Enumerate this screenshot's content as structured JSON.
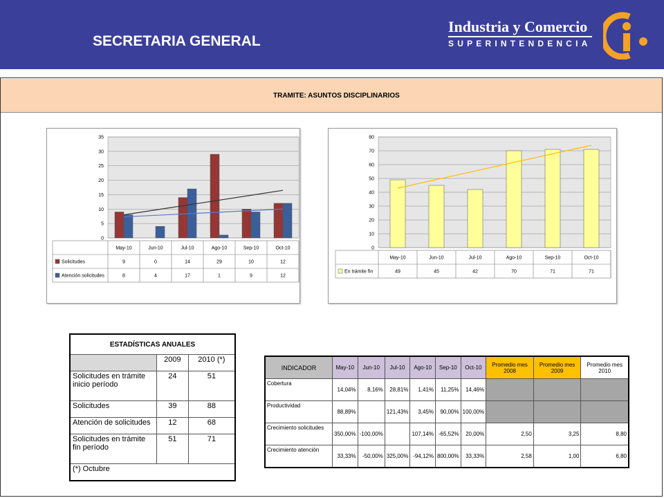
{
  "header": {
    "title": "SECRETARIA GENERAL",
    "brand_name": "Industria y Comercio",
    "brand_sub": "SUPERINTENDENCIA",
    "brand_color": "#3a3f9a",
    "logo_color": "#f4a227"
  },
  "tramite": {
    "label": "TRAMITE:  ASUNTOS DISCIPLINARIOS"
  },
  "chart_data": [
    {
      "type": "bar",
      "categories": [
        "May-10",
        "Jun-10",
        "Jul-10",
        "Ago-10",
        "Sep-10",
        "Oct-10"
      ],
      "series": [
        {
          "name": "Solicitudes",
          "values": [
            9,
            0,
            14,
            29,
            10,
            12
          ],
          "color": "#953735"
        },
        {
          "name": "Atención solicitudes",
          "values": [
            8,
            4,
            17,
            1,
            9,
            12
          ],
          "color": "#3a5f9a"
        }
      ],
      "trendlines": [
        {
          "series": "Solicitudes",
          "from": 8,
          "to": 16.5,
          "color": "#333333"
        },
        {
          "series": "Atención solicitudes",
          "from": 7.3,
          "to": 10,
          "color": "#5b78c8"
        }
      ],
      "ylim": [
        0,
        35
      ],
      "yticks": [
        0,
        5,
        10,
        15,
        20,
        25,
        30,
        35
      ],
      "legend": "data-table",
      "grid": true
    },
    {
      "type": "bar",
      "categories": [
        "May-10",
        "Jun-10",
        "Jul-10",
        "Ago-10",
        "Sep-10",
        "Oct-10"
      ],
      "series": [
        {
          "name": "En trámite fin",
          "values": [
            49,
            45,
            42,
            70,
            71,
            71
          ],
          "color": "#ffff99"
        }
      ],
      "trendlines": [
        {
          "series": "En trámite fin",
          "from": 43,
          "to": 74,
          "color": "#ffc000"
        }
      ],
      "ylim": [
        0,
        80
      ],
      "yticks": [
        0,
        10,
        20,
        30,
        40,
        50,
        60,
        70,
        80
      ],
      "legend": "data-table",
      "grid": true
    }
  ],
  "stats": {
    "title": "ESTADÍSTICAS ANUALES",
    "col1": "2009",
    "col2": "2010 (*)",
    "rows": [
      {
        "label": "Solicitudes en trámite inicio período",
        "v1": "24",
        "v2": "51"
      },
      {
        "label": "Solicitudes",
        "v1": "39",
        "v2": "88"
      },
      {
        "label": "Atención de solicitudes",
        "v1": "12",
        "v2": "68"
      },
      {
        "label": "Solicitudes en trámite fin período",
        "v1": "51",
        "v2": "71"
      }
    ],
    "footnote": "(*) Octubre"
  },
  "indicators": {
    "header": [
      "INDICADOR",
      "May-10",
      "Jun-10",
      "Jul-10",
      "Ago-10",
      "Sep-10",
      "Oct-10",
      "Promedio mes 2008",
      "Promedio mes 2009",
      "Promedio mes 2010"
    ],
    "rows": [
      {
        "label": "Cobertura",
        "vals": [
          "14,04%",
          "8,16%",
          "28,81%",
          "1,41%",
          "11,25%",
          "14,46%"
        ],
        "avg": [
          "",
          "",
          ""
        ]
      },
      {
        "label": "Productividad",
        "vals": [
          "88,89%",
          "",
          "121,43%",
          "3,45%",
          "90,00%",
          "100,00%"
        ],
        "avg": [
          "",
          "",
          ""
        ]
      },
      {
        "label": "Crecimiento solicitudes",
        "vals": [
          "350,00%",
          "-100,00%",
          "",
          "107,14%",
          "-65,52%",
          "20,00%"
        ],
        "avg": [
          "2,50",
          "3,25",
          "8,80"
        ]
      },
      {
        "label": "Crecimiento atención",
        "vals": [
          "33,33%",
          "-50,00%",
          "325,00%",
          "-94,12%",
          "800,00%",
          "33,33%"
        ],
        "avg": [
          "2,58",
          "1,00",
          "6,80"
        ]
      }
    ]
  }
}
